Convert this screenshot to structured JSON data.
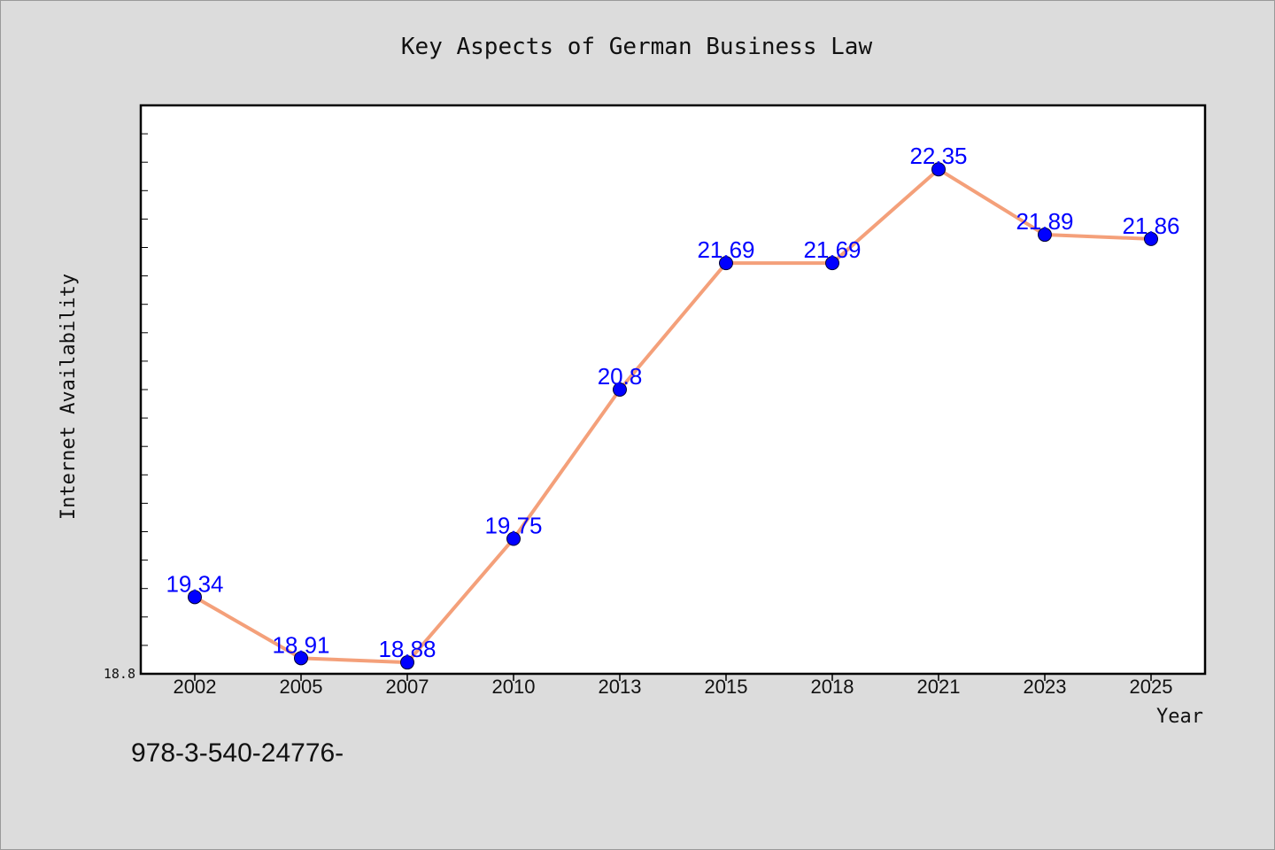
{
  "chart_data": {
    "type": "line",
    "title": "Key Aspects of German Business Law",
    "xlabel": "Year",
    "ylabel": "Internet Availability",
    "categories": [
      "2002",
      "2005",
      "2007",
      "2010",
      "2013",
      "2015",
      "2018",
      "2021",
      "2023",
      "2025"
    ],
    "series": [
      {
        "values": [
          19.34,
          18.91,
          18.88,
          19.75,
          20.8,
          21.69,
          21.69,
          22.35,
          21.89,
          21.86
        ],
        "labels": [
          "19.34",
          "18.91",
          "18.88",
          "19.75",
          "20.8",
          "21.69",
          "21.69",
          "22.35",
          "21.89",
          "21.86"
        ]
      }
    ],
    "ylim": [
      18.8,
      22.8
    ],
    "ytick_labels": [
      "18.8"
    ],
    "line_color": "#f4a07a",
    "marker_color": "#0000ff",
    "data_label_color": "#0000ff",
    "grid": false,
    "legend": "none"
  },
  "footnote": "978-3-540-24776-"
}
